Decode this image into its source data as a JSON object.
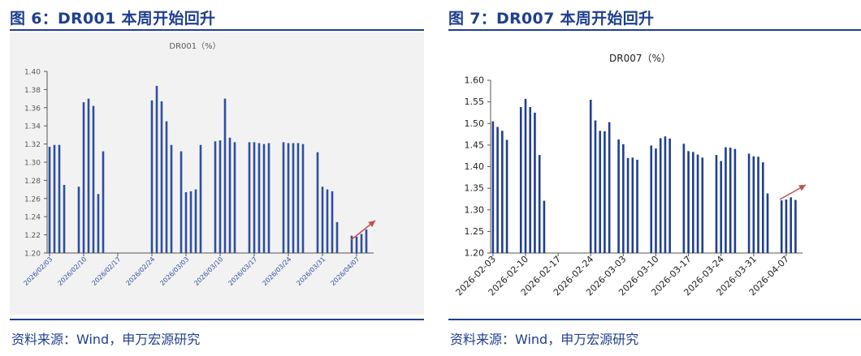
{
  "figures": [
    {
      "title": "图 6：DR001 本周开始回升",
      "source": "资料来源：Wind，申万宏源研究",
      "trend_arrow_color": "#c0504d"
    },
    {
      "title": "图 7：DR007 本周开始回升",
      "source": "资料来源：Wind，申万宏源研究",
      "trend_arrow_color": "#c0504d"
    }
  ],
  "chart_data": [
    {
      "type": "bar",
      "title": "DR001（%）",
      "xlabel": "",
      "ylabel": "",
      "ylim": [
        1.2,
        1.4
      ],
      "yticks": [
        "1.20",
        "1.22",
        "1.24",
        "1.26",
        "1.28",
        "1.30",
        "1.32",
        "1.34",
        "1.36",
        "1.38",
        "1.40"
      ],
      "n_slots": 67,
      "x_ticks": [
        {
          "index": 0,
          "label": "2026/02/03"
        },
        {
          "index": 7,
          "label": "2026/02/10"
        },
        {
          "index": 14,
          "label": "2026/02/17"
        },
        {
          "index": 21,
          "label": "2026/02/24"
        },
        {
          "index": 28,
          "label": "2026/03/03"
        },
        {
          "index": 35,
          "label": "2026/03/10"
        },
        {
          "index": 42,
          "label": "2026/03/17"
        },
        {
          "index": 49,
          "label": "2026/03/24"
        },
        {
          "index": 56,
          "label": "2026/03/31"
        },
        {
          "index": 63,
          "label": "2026/04/07"
        }
      ],
      "bar_color": "#2e4fa0",
      "series": [
        {
          "name": "DR001",
          "points": [
            {
              "i": 0,
              "v": 1.317
            },
            {
              "i": 1,
              "v": 1.319
            },
            {
              "i": 2,
              "v": 1.319
            },
            {
              "i": 3,
              "v": 1.275
            },
            {
              "i": 6,
              "v": 1.273
            },
            {
              "i": 7,
              "v": 1.366
            },
            {
              "i": 8,
              "v": 1.37
            },
            {
              "i": 9,
              "v": 1.362
            },
            {
              "i": 10,
              "v": 1.265
            },
            {
              "i": 11,
              "v": 1.312
            },
            {
              "i": 21,
              "v": 1.368
            },
            {
              "i": 22,
              "v": 1.384
            },
            {
              "i": 23,
              "v": 1.367
            },
            {
              "i": 24,
              "v": 1.345
            },
            {
              "i": 25,
              "v": 1.319
            },
            {
              "i": 27,
              "v": 1.312
            },
            {
              "i": 28,
              "v": 1.267
            },
            {
              "i": 29,
              "v": 1.268
            },
            {
              "i": 30,
              "v": 1.27
            },
            {
              "i": 31,
              "v": 1.319
            },
            {
              "i": 34,
              "v": 1.323
            },
            {
              "i": 35,
              "v": 1.324
            },
            {
              "i": 36,
              "v": 1.37
            },
            {
              "i": 37,
              "v": 1.327
            },
            {
              "i": 38,
              "v": 1.322
            },
            {
              "i": 41,
              "v": 1.322
            },
            {
              "i": 42,
              "v": 1.322
            },
            {
              "i": 43,
              "v": 1.321
            },
            {
              "i": 44,
              "v": 1.32
            },
            {
              "i": 45,
              "v": 1.321
            },
            {
              "i": 48,
              "v": 1.322
            },
            {
              "i": 49,
              "v": 1.321
            },
            {
              "i": 50,
              "v": 1.321
            },
            {
              "i": 51,
              "v": 1.321
            },
            {
              "i": 52,
              "v": 1.32
            },
            {
              "i": 55,
              "v": 1.311
            },
            {
              "i": 56,
              "v": 1.273
            },
            {
              "i": 57,
              "v": 1.27
            },
            {
              "i": 58,
              "v": 1.268
            },
            {
              "i": 59,
              "v": 1.234
            },
            {
              "i": 62,
              "v": 1.219
            },
            {
              "i": 63,
              "v": 1.218
            },
            {
              "i": 64,
              "v": 1.221
            },
            {
              "i": 65,
              "v": 1.226
            }
          ]
        }
      ],
      "annotation": "upward trend arrow near latest bars"
    },
    {
      "type": "bar",
      "title": "DR007（%）",
      "xlabel": "",
      "ylabel": "",
      "ylim": [
        1.2,
        1.6
      ],
      "yticks": [
        "1.20",
        "1.25",
        "1.30",
        "1.35",
        "1.40",
        "1.45",
        "1.50",
        "1.55",
        "1.60"
      ],
      "n_slots": 67,
      "x_ticks": [
        {
          "index": 0,
          "label": "2026-02-03"
        },
        {
          "index": 7,
          "label": "2026-02-10"
        },
        {
          "index": 14,
          "label": "2026-02-17"
        },
        {
          "index": 21,
          "label": "2026-02-24"
        },
        {
          "index": 28,
          "label": "2026-03-03"
        },
        {
          "index": 35,
          "label": "2026-03-10"
        },
        {
          "index": 42,
          "label": "2026-03-17"
        },
        {
          "index": 49,
          "label": "2026-03-24"
        },
        {
          "index": 56,
          "label": "2026-03-31"
        },
        {
          "index": 63,
          "label": "2026-04-07"
        }
      ],
      "bar_color": "#1f3f8f",
      "series": [
        {
          "name": "DR007",
          "points": [
            {
              "i": 0,
              "v": 1.505
            },
            {
              "i": 1,
              "v": 1.492
            },
            {
              "i": 2,
              "v": 1.483
            },
            {
              "i": 3,
              "v": 1.462
            },
            {
              "i": 6,
              "v": 1.538
            },
            {
              "i": 7,
              "v": 1.557
            },
            {
              "i": 8,
              "v": 1.538
            },
            {
              "i": 9,
              "v": 1.525
            },
            {
              "i": 10,
              "v": 1.427
            },
            {
              "i": 11,
              "v": 1.321
            },
            {
              "i": 21,
              "v": 1.555
            },
            {
              "i": 22,
              "v": 1.507
            },
            {
              "i": 23,
              "v": 1.483
            },
            {
              "i": 24,
              "v": 1.482
            },
            {
              "i": 25,
              "v": 1.503
            },
            {
              "i": 27,
              "v": 1.463
            },
            {
              "i": 28,
              "v": 1.452
            },
            {
              "i": 29,
              "v": 1.42
            },
            {
              "i": 30,
              "v": 1.421
            },
            {
              "i": 31,
              "v": 1.416
            },
            {
              "i": 34,
              "v": 1.449
            },
            {
              "i": 35,
              "v": 1.442
            },
            {
              "i": 36,
              "v": 1.466
            },
            {
              "i": 37,
              "v": 1.47
            },
            {
              "i": 38,
              "v": 1.465
            },
            {
              "i": 41,
              "v": 1.453
            },
            {
              "i": 42,
              "v": 1.436
            },
            {
              "i": 43,
              "v": 1.434
            },
            {
              "i": 44,
              "v": 1.428
            },
            {
              "i": 45,
              "v": 1.421
            },
            {
              "i": 48,
              "v": 1.427
            },
            {
              "i": 49,
              "v": 1.413
            },
            {
              "i": 50,
              "v": 1.445
            },
            {
              "i": 51,
              "v": 1.444
            },
            {
              "i": 52,
              "v": 1.441
            },
            {
              "i": 55,
              "v": 1.43
            },
            {
              "i": 56,
              "v": 1.424
            },
            {
              "i": 57,
              "v": 1.423
            },
            {
              "i": 58,
              "v": 1.41
            },
            {
              "i": 59,
              "v": 1.338
            },
            {
              "i": 62,
              "v": 1.322
            },
            {
              "i": 63,
              "v": 1.324
            },
            {
              "i": 64,
              "v": 1.329
            },
            {
              "i": 65,
              "v": 1.323
            }
          ]
        }
      ],
      "annotation": "upward trend arrow near latest bars"
    }
  ]
}
